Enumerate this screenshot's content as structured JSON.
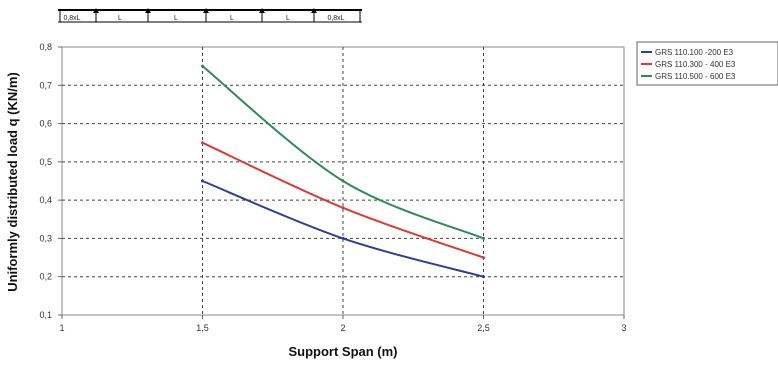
{
  "chart_data": {
    "type": "line",
    "title": "",
    "xlabel": "Support Span (m)",
    "ylabel": "Uniformly distributed load q (KN/m)",
    "xlim": [
      1,
      3
    ],
    "ylim": [
      0.1,
      0.8
    ],
    "x_ticks": [
      1,
      1.5,
      2,
      2.5,
      3
    ],
    "x_tick_labels": [
      "1",
      "1,5",
      "2",
      "2,5",
      "3"
    ],
    "y_ticks": [
      0.1,
      0.2,
      0.3,
      0.4,
      0.5,
      0.6,
      0.7,
      0.8
    ],
    "y_tick_labels": [
      "0,1",
      "0,2",
      "0,3",
      "0,4",
      "0,5",
      "0,6",
      "0,7",
      "0,8"
    ],
    "grid": true,
    "legend_position": "right",
    "x": [
      1.5,
      2,
      2.5
    ],
    "series": [
      {
        "name": "GRS 110.100 -200 E3",
        "color": "#2f3f8f",
        "values": [
          0.45,
          0.3,
          0.2
        ]
      },
      {
        "name": "GRS 110.300 - 400 E3",
        "color": "#d93a3a",
        "values": [
          0.55,
          0.38,
          0.25
        ]
      },
      {
        "name": "GRS 110.500 - 600 E3",
        "color": "#2e8b57",
        "values": [
          0.75,
          0.45,
          0.3
        ]
      }
    ]
  },
  "diagram": {
    "end_label": "0,8xL",
    "span_label": "L"
  }
}
